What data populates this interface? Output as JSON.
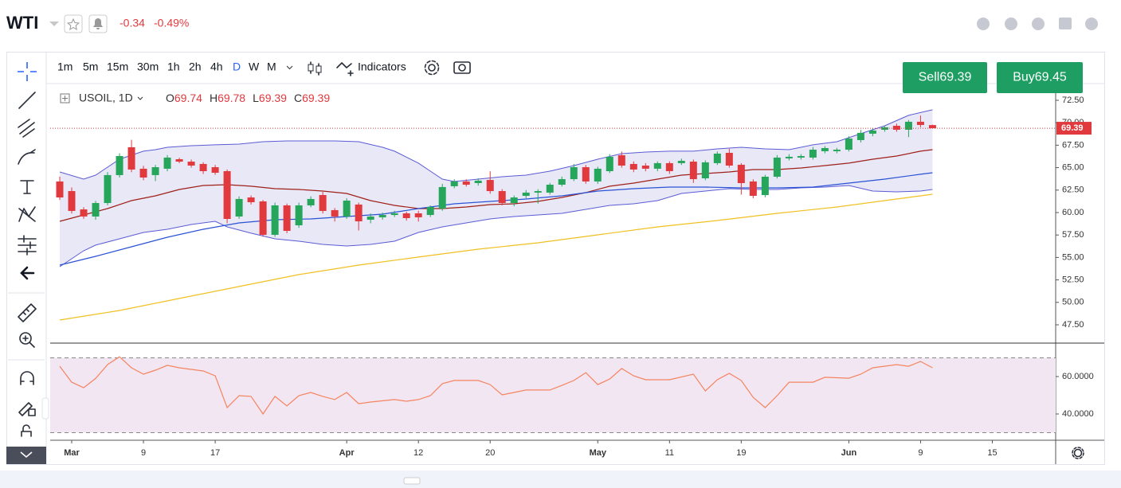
{
  "header": {
    "symbol": "WTI",
    "change": "-0.34",
    "change_pct": "-0.49%"
  },
  "toolbar": {
    "intervals": [
      "1m",
      "5m",
      "15m",
      "30m",
      "1h",
      "2h",
      "4h",
      "D",
      "W",
      "M"
    ],
    "indicators": "Indicators"
  },
  "trade": {
    "sell": {
      "label": "Sell",
      "price": "69.39"
    },
    "buy": {
      "label": "Buy",
      "price": "69.45"
    }
  },
  "legend": {
    "symbol": "USOIL, 1D",
    "items": [
      {
        "key": "O",
        "value": "69.74"
      },
      {
        "key": "H",
        "value": "69.78"
      },
      {
        "key": "L",
        "value": "69.39"
      },
      {
        "key": "C",
        "value": "69.39"
      }
    ]
  },
  "chart_data": [
    {
      "type": "candlestick",
      "up_color": "#26a65b",
      "down_color": "#e0393e",
      "x": [
        0,
        1,
        2,
        3,
        4,
        5,
        6,
        7,
        8,
        9,
        10,
        11,
        12,
        13,
        14,
        15,
        16,
        17,
        18,
        19,
        20,
        21,
        22,
        23,
        24,
        25,
        26,
        27,
        28,
        29,
        30,
        31,
        32,
        33,
        34,
        35,
        36,
        37,
        38,
        39,
        40,
        41,
        42,
        43,
        44,
        45,
        46,
        47,
        48,
        49,
        50,
        51,
        52,
        53,
        54,
        55,
        56,
        57,
        58,
        59,
        60,
        61,
        62,
        63,
        64,
        65,
        66,
        67,
        68,
        69,
        70,
        71,
        72,
        73
      ],
      "open": [
        63.46,
        62.39,
        60.35,
        59.56,
        61.06,
        64.17,
        67.27,
        64.88,
        64.17,
        64.88,
        65.94,
        65.67,
        65.41,
        65.05,
        64.61,
        59.56,
        61.68,
        61.24,
        57.52,
        60.8,
        58.58,
        60.8,
        61.95,
        60.27,
        59.56,
        60.89,
        59.2,
        59.47,
        59.73,
        59.91,
        59.91,
        59.73,
        60.44,
        62.93,
        63.46,
        63.28,
        63.63,
        62.39,
        61.06,
        61.86,
        62.22,
        62.22,
        63.1,
        63.72,
        65.05,
        63.46,
        64.61,
        66.38,
        65.41,
        65.23,
        64.88,
        65.5,
        65.5,
        65.67,
        63.81,
        65.5,
        66.65,
        65.32,
        63.46,
        61.95,
        63.99,
        66.03,
        66.12,
        66.12,
        66.83,
        66.83,
        67.0,
        68.07,
        68.78,
        69.22,
        69.66,
        69.22,
        70.11,
        69.74
      ],
      "high": [
        64.0,
        62.8,
        60.6,
        61.3,
        64.5,
        66.6,
        68.1,
        65.2,
        65.3,
        66.4,
        66.1,
        65.9,
        65.6,
        65.3,
        64.8,
        61.8,
        61.9,
        61.4,
        61.1,
        61.0,
        61.1,
        61.8,
        62.3,
        60.5,
        61.6,
        61.1,
        59.9,
        60.0,
        60.2,
        60.1,
        60.2,
        60.8,
        63.2,
        63.7,
        63.7,
        63.8,
        64.6,
        62.6,
        61.9,
        62.5,
        62.6,
        63.3,
        64.0,
        65.4,
        65.3,
        65.1,
        66.5,
        66.8,
        65.7,
        65.5,
        65.7,
        65.7,
        66.0,
        65.9,
        65.8,
        66.8,
        67.1,
        65.5,
        63.7,
        64.2,
        66.4,
        66.5,
        66.5,
        67.3,
        67.4,
        67.2,
        68.5,
        69.2,
        69.4,
        69.7,
        69.9,
        70.3,
        70.8,
        69.78
      ],
      "low": [
        61.4,
        59.9,
        59.3,
        59.2,
        60.8,
        63.9,
        64.5,
        63.6,
        63.5,
        64.6,
        65.5,
        65.0,
        64.3,
        64.2,
        58.8,
        59.3,
        60.9,
        57.3,
        57.3,
        57.7,
        58.3,
        60.6,
        59.9,
        59.0,
        59.3,
        58.0,
        58.8,
        59.2,
        59.5,
        59.1,
        59.0,
        59.5,
        60.2,
        62.7,
        62.9,
        63.0,
        62.1,
        60.8,
        60.7,
        61.6,
        61.0,
        62.0,
        62.9,
        63.5,
        63.2,
        63.2,
        64.4,
        65.0,
        64.5,
        64.6,
        64.6,
        64.3,
        65.3,
        63.3,
        63.6,
        65.3,
        65.0,
        62.0,
        61.6,
        61.7,
        63.8,
        65.8,
        65.9,
        65.9,
        66.6,
        66.6,
        66.8,
        67.8,
        68.5,
        69.0,
        69.0,
        68.4,
        69.5,
        69.39
      ],
      "close": [
        61.68,
        60.18,
        59.56,
        61.06,
        64.17,
        66.29,
        64.79,
        63.9,
        65.05,
        66.12,
        65.67,
        65.23,
        64.61,
        64.43,
        59.29,
        61.51,
        61.15,
        57.52,
        60.8,
        57.96,
        60.8,
        61.51,
        60.18,
        59.56,
        61.33,
        59.02,
        59.56,
        59.73,
        59.91,
        59.38,
        59.47,
        60.62,
        62.84,
        63.46,
        63.1,
        63.55,
        62.39,
        61.06,
        61.68,
        62.22,
        62.39,
        63.1,
        63.72,
        65.05,
        63.46,
        64.88,
        66.21,
        65.23,
        64.79,
        64.88,
        65.5,
        64.61,
        65.76,
        63.72,
        65.59,
        66.56,
        65.23,
        63.28,
        61.86,
        63.99,
        66.12,
        66.21,
        66.29,
        67.0,
        67.18,
        67.0,
        68.24,
        68.87,
        69.13,
        69.49,
        69.22,
        70.11,
        69.75,
        69.39
      ],
      "band": {
        "color": "#5b5bd6",
        "fill": "#d8d8f0",
        "upper": {
          "x": [
            0,
            2,
            3,
            4,
            5,
            6,
            7,
            8,
            9,
            11,
            13,
            15,
            17,
            19,
            21,
            23,
            25,
            27,
            28,
            30,
            31,
            32,
            33,
            35,
            37,
            39,
            41,
            43,
            45,
            47,
            49,
            51,
            53,
            55,
            57,
            59,
            61,
            63,
            65,
            67,
            69,
            71,
            73
          ],
          "values": [
            64.52,
            63.72,
            64.17,
            65.05,
            65.94,
            66.38,
            66.83,
            67.0,
            67.27,
            67.45,
            67.54,
            67.62,
            67.89,
            67.98,
            67.98,
            67.98,
            67.89,
            67.27,
            66.83,
            65.5,
            64.61,
            63.72,
            63.46,
            63.72,
            63.99,
            64.17,
            64.61,
            65.23,
            65.94,
            66.56,
            66.74,
            66.83,
            66.83,
            67.09,
            67.27,
            67.09,
            67.0,
            67.54,
            67.89,
            68.78,
            69.66,
            70.82,
            71.44
          ]
        },
        "lower": {
          "x": [
            0,
            1,
            2,
            3,
            5,
            7,
            9,
            11,
            13,
            14,
            16,
            18,
            20,
            22,
            24,
            26,
            28,
            30,
            32,
            34,
            36,
            38,
            40,
            42,
            44,
            46,
            48,
            50,
            52,
            54,
            56,
            58,
            60,
            62,
            64,
            66,
            68,
            70,
            72,
            73
          ],
          "values": [
            53.97,
            54.86,
            55.74,
            56.37,
            57.07,
            57.78,
            58.14,
            58.67,
            59.02,
            58.4,
            57.7,
            57.07,
            56.81,
            56.45,
            56.28,
            56.45,
            56.81,
            57.78,
            58.4,
            58.85,
            59.29,
            59.56,
            59.73,
            59.91,
            60.35,
            60.8,
            60.97,
            61.33,
            62.13,
            62.39,
            62.66,
            62.57,
            62.57,
            62.75,
            62.84,
            63.01,
            62.39,
            62.3,
            62.39,
            62.57
          ]
        }
      },
      "overlays": [
        {
          "color": "#a0201a",
          "x": [
            0,
            2,
            4,
            6,
            8,
            10,
            12,
            14,
            16,
            18,
            20,
            22,
            24,
            26,
            28,
            30,
            32,
            34,
            36,
            38,
            40,
            42,
            44,
            46,
            48,
            50,
            52,
            54,
            56,
            58,
            60,
            62,
            64,
            66,
            68,
            70,
            72,
            73
          ],
          "values": [
            59.02,
            59.73,
            60.44,
            61.33,
            61.86,
            62.57,
            63.01,
            63.1,
            62.93,
            62.66,
            62.57,
            62.39,
            62.13,
            61.33,
            60.8,
            60.44,
            60.44,
            60.62,
            60.89,
            60.97,
            61.24,
            61.68,
            62.22,
            62.93,
            63.28,
            63.72,
            64.17,
            64.34,
            64.52,
            64.79,
            64.79,
            64.96,
            65.23,
            65.5,
            65.94,
            66.29,
            66.83,
            67.0
          ]
        },
        {
          "color": "#2a52d6",
          "x": [
            0,
            3,
            6,
            9,
            12,
            15,
            18,
            21,
            24,
            27,
            30,
            33,
            36,
            39,
            42,
            45,
            48,
            51,
            54,
            57,
            60,
            63,
            66,
            69,
            72,
            73
          ],
          "values": [
            54.15,
            55.12,
            56.19,
            57.25,
            58.14,
            58.85,
            59.2,
            59.29,
            59.56,
            59.82,
            60.44,
            60.97,
            61.24,
            61.51,
            61.86,
            62.39,
            62.66,
            62.84,
            62.84,
            62.75,
            62.75,
            62.84,
            63.28,
            63.72,
            64.26,
            64.43
          ]
        },
        {
          "color": "#f0c020",
          "x": [
            0,
            5,
            10,
            15,
            20,
            25,
            30,
            35,
            40,
            45,
            50,
            55,
            60,
            65,
            70,
            73
          ],
          "values": [
            48.03,
            49.1,
            50.43,
            51.76,
            53.09,
            54.15,
            55.04,
            55.92,
            56.63,
            57.52,
            58.4,
            59.11,
            59.91,
            60.62,
            61.51,
            62.04
          ]
        }
      ],
      "xlim": [
        -0.8,
        83.3
      ],
      "xticks": [
        {
          "value": 1,
          "label": "Mar"
        },
        {
          "value": 7,
          "label": "9"
        },
        {
          "value": 13,
          "label": "17"
        },
        {
          "value": 24,
          "label": "Apr"
        },
        {
          "value": 30,
          "label": "12"
        },
        {
          "value": 36,
          "label": "20"
        },
        {
          "value": 45,
          "label": "May"
        },
        {
          "value": 51,
          "label": "11"
        },
        {
          "value": 57,
          "label": "19"
        },
        {
          "value": 66,
          "label": "Jun"
        },
        {
          "value": 72,
          "label": "9"
        },
        {
          "value": 78,
          "label": "15"
        }
      ],
      "ylim": [
        45.55,
        74.36
      ],
      "yticks": [
        {
          "value": 72.5,
          "label": "72.50"
        },
        {
          "value": 70,
          "label": "70.00"
        },
        {
          "value": 67.5,
          "label": "67.50"
        },
        {
          "value": 65,
          "label": "65.00"
        },
        {
          "value": 62.5,
          "label": "62.50"
        },
        {
          "value": 60,
          "label": "60.00"
        },
        {
          "value": 57.5,
          "label": "57.50"
        },
        {
          "value": 55,
          "label": "55.00"
        },
        {
          "value": 52.5,
          "label": "52.50"
        },
        {
          "value": 50,
          "label": "50.00"
        },
        {
          "value": 47.5,
          "label": "47.50"
        }
      ],
      "price_line": {
        "value": 69.39,
        "label": "69.39",
        "color": "#e0393e"
      }
    },
    {
      "type": "line",
      "color": "#f4845f",
      "fill": "#f3e6f3",
      "x": [
        0,
        1,
        2,
        3,
        4,
        5,
        6,
        7,
        8,
        9,
        10,
        12,
        13,
        14,
        15,
        16,
        17,
        18,
        19,
        20,
        21,
        22,
        23,
        24,
        25,
        26,
        28,
        29,
        30,
        31,
        32,
        33,
        35,
        36,
        37,
        38,
        39,
        41,
        42,
        43,
        44,
        45,
        46,
        47,
        48,
        49,
        51,
        53,
        54,
        55,
        56,
        57,
        58,
        59,
        60,
        61,
        63,
        64,
        66,
        67,
        68,
        70,
        71,
        72,
        73
      ],
      "values": [
        65.5,
        57,
        54,
        59,
        66.4,
        70.6,
        64.7,
        61.3,
        63.4,
        66,
        64.7,
        63,
        60.4,
        43.4,
        49.8,
        49.4,
        40,
        49.4,
        44.3,
        49.8,
        51.5,
        49.4,
        47.7,
        51.5,
        45.5,
        46.4,
        47.7,
        46.8,
        47.7,
        49.8,
        56.2,
        57.9,
        57.9,
        55.7,
        50.2,
        51.5,
        52.8,
        52.8,
        55.3,
        57.9,
        62.1,
        55.7,
        58.7,
        64.3,
        60.4,
        58.3,
        58.3,
        61.3,
        52.3,
        58.3,
        61.7,
        57.9,
        48.9,
        43.4,
        49.8,
        57,
        57,
        59.6,
        59.1,
        61.3,
        64.7,
        66.4,
        65.5,
        68.1,
        64.7
      ],
      "levels": [
        70,
        30
      ],
      "ylim": [
        25.96,
        77.45
      ],
      "yticks": [
        {
          "value": 60,
          "label": "60.0000"
        },
        {
          "value": 40,
          "label": "40.0000"
        }
      ]
    }
  ]
}
